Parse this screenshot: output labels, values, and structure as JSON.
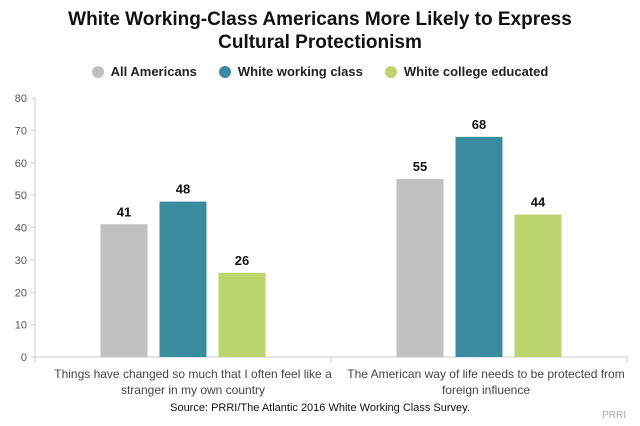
{
  "chart_data": {
    "type": "bar",
    "title": "White Working-Class Americans More Likely to Express Cultural Protectionism",
    "categories": [
      "Things have changed so much that I often feel like a stranger in my own country",
      "The American way of life needs to be protected from foreign influence"
    ],
    "series": [
      {
        "name": "All Americans",
        "color": "#c0c0c0",
        "values": [
          41,
          55
        ]
      },
      {
        "name": "White working class",
        "color": "#3a8b9e",
        "values": [
          48,
          68
        ]
      },
      {
        "name": "White college educated",
        "color": "#bcd46e",
        "values": [
          26,
          44
        ]
      }
    ],
    "ylim": [
      0,
      80
    ],
    "yticks": [
      0,
      10,
      20,
      30,
      40,
      50,
      60,
      70,
      80
    ],
    "xlabel": "",
    "ylabel": "",
    "grid": false,
    "legend_position": "top-center"
  },
  "title_lines": [
    "White Working-Class Americans More Likely to Express",
    "Cultural Protectionism"
  ],
  "source": "Source: PRRI/The Atlantic 2016 White Working Class Survey.",
  "credit": "PRRI"
}
